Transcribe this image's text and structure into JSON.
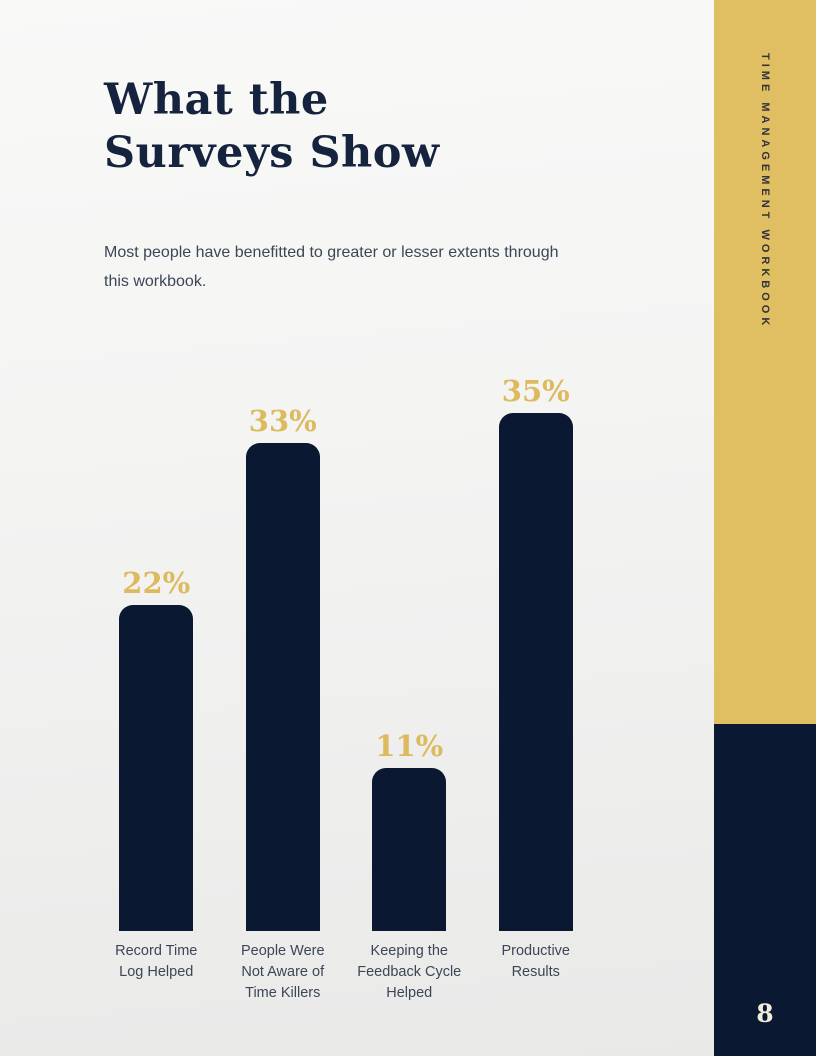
{
  "theme": {
    "navy": "#0b1832",
    "gold": "#e0bf63",
    "gold_text": "#ddba5e",
    "title_navy": "#16233e",
    "text_dark": "#3c4656"
  },
  "header": {
    "title_lines": [
      "What the",
      "Surveys Show"
    ],
    "subtitle": "Most people have benefitted to greater or lesser extents through this workbook."
  },
  "sidebar": {
    "vertical_title": "TIME MANAGEMENT WORKBOOK",
    "page_number": "8"
  },
  "chart_data": {
    "type": "bar",
    "title": "",
    "xlabel": "",
    "ylabel": "",
    "categories": [
      "Record Time Log Helped",
      "People Were Not Aware of Time Killers",
      "Keeping the Feedback Cycle Helped",
      "Productive Results"
    ],
    "values": [
      22,
      33,
      11,
      35
    ],
    "value_labels": [
      "22%",
      "33%",
      "11%",
      "35%"
    ],
    "category_lines": [
      [
        "Record Time",
        "Log Helped"
      ],
      [
        "People Were",
        "Not Aware of",
        "Time Killers"
      ],
      [
        "Keeping the",
        "Feedback Cycle",
        "Helped"
      ],
      [
        "Productive",
        "Results"
      ]
    ],
    "ylim": [
      0,
      38
    ],
    "grid": false,
    "legend": false,
    "bar_color": "#0b1832",
    "value_label_color": "#ddba5e"
  }
}
